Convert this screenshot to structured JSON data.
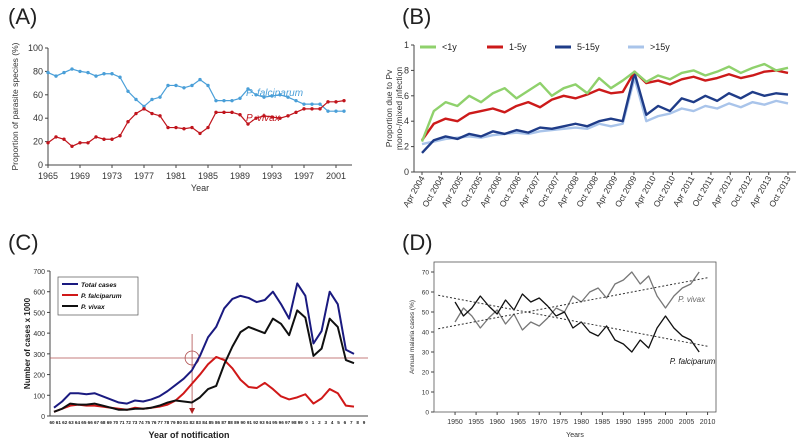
{
  "panel_labels": [
    "(A)",
    "(B)",
    "(C)",
    "(D)"
  ],
  "chart_data": [
    {
      "panel": "(A)",
      "type": "line",
      "xlabel": "Year",
      "ylabel": "Proportion of parasite species (%)",
      "xlim": [
        1965,
        2003
      ],
      "ylim": [
        0,
        100
      ],
      "xticks": [
        1965,
        1969,
        1973,
        1977,
        1981,
        1985,
        1989,
        1993,
        1997,
        2001
      ],
      "yticks": [
        0,
        20,
        40,
        60,
        80,
        100
      ],
      "x": [
        1965,
        1966,
        1967,
        1968,
        1969,
        1970,
        1971,
        1972,
        1973,
        1974,
        1975,
        1976,
        1977,
        1978,
        1979,
        1980,
        1981,
        1982,
        1983,
        1984,
        1985,
        1986,
        1987,
        1988,
        1989,
        1990,
        1991,
        1992,
        1993,
        1994,
        1995,
        1996,
        1997,
        1998,
        1999,
        2000,
        2001,
        2002
      ],
      "series": [
        {
          "name": "P. falciparum",
          "color": "#4a9fd8",
          "values": [
            79,
            76,
            79,
            82,
            80,
            79,
            76,
            78,
            78,
            75,
            63,
            56,
            50,
            56,
            58,
            68,
            68,
            66,
            68,
            73,
            68,
            55,
            55,
            55,
            57,
            65,
            60,
            58,
            59,
            60,
            58,
            55,
            52,
            52,
            52,
            46,
            46,
            46
          ]
        },
        {
          "name": "P. vivax",
          "color": "#c0141c",
          "values": [
            19,
            24,
            22,
            16,
            19,
            19,
            24,
            22,
            22,
            25,
            37,
            44,
            48,
            44,
            42,
            32,
            32,
            31,
            32,
            27,
            32,
            45,
            45,
            45,
            43,
            35,
            40,
            42,
            41,
            40,
            42,
            45,
            48,
            48,
            48,
            54,
            54,
            55
          ]
        }
      ]
    },
    {
      "panel": "(B)",
      "type": "line",
      "ylabel": "Proportion due to Pv mono-/mixed infection",
      "ylim": [
        0,
        1
      ],
      "yticks": [
        "0",
        ".2",
        ".4",
        ".6",
        ".8",
        "1"
      ],
      "xtick_labels": [
        "Apr 2004",
        "Oct 2004",
        "Apr 2005",
        "Oct 2005",
        "Apr 2006",
        "Oct 2006",
        "Apr 2007",
        "Oct 2007",
        "Apr 2008",
        "Oct 2008",
        "Apr 2009",
        "Oct 2009",
        "Apr 2010",
        "Oct 2010",
        "Apr 2011",
        "Oct 2011",
        "Apr 2012",
        "Oct 2012",
        "Apr 2013",
        "Oct 2013"
      ],
      "legend": [
        "<1y",
        "1-5y",
        "5-15y",
        ">15y"
      ],
      "series": [
        {
          "name": "<1y",
          "color": "#8fd16c",
          "values": [
            0.24,
            0.48,
            0.55,
            0.52,
            0.6,
            0.55,
            0.62,
            0.66,
            0.58,
            0.64,
            0.7,
            0.6,
            0.66,
            0.69,
            0.62,
            0.74,
            0.66,
            0.72,
            0.79,
            0.71,
            0.76,
            0.73,
            0.78,
            0.8,
            0.76,
            0.79,
            0.83,
            0.78,
            0.82,
            0.85,
            0.8,
            0.82
          ]
        },
        {
          "name": "1-5y",
          "color": "#cc1a1a",
          "values": [
            0.25,
            0.38,
            0.42,
            0.4,
            0.46,
            0.48,
            0.5,
            0.47,
            0.52,
            0.55,
            0.51,
            0.57,
            0.6,
            0.58,
            0.61,
            0.65,
            0.62,
            0.63,
            0.79,
            0.7,
            0.72,
            0.69,
            0.73,
            0.75,
            0.72,
            0.74,
            0.77,
            0.74,
            0.76,
            0.79,
            0.8,
            0.78
          ]
        },
        {
          "name": "5-15y",
          "color": "#1f3c88",
          "values": [
            0.15,
            0.25,
            0.28,
            0.26,
            0.3,
            0.28,
            0.32,
            0.3,
            0.33,
            0.31,
            0.35,
            0.34,
            0.36,
            0.38,
            0.36,
            0.4,
            0.42,
            0.4,
            0.78,
            0.45,
            0.52,
            0.48,
            0.58,
            0.55,
            0.6,
            0.56,
            0.62,
            0.58,
            0.63,
            0.6,
            0.62,
            0.61
          ]
        },
        {
          "name": ">15y",
          "color": "#a9c4ea",
          "values": [
            0.22,
            0.24,
            0.26,
            0.27,
            0.28,
            0.27,
            0.29,
            0.3,
            0.31,
            0.3,
            0.32,
            0.33,
            0.34,
            0.35,
            0.34,
            0.38,
            0.36,
            0.38,
            0.74,
            0.4,
            0.44,
            0.46,
            0.5,
            0.48,
            0.52,
            0.5,
            0.54,
            0.51,
            0.55,
            0.53,
            0.56,
            0.54
          ]
        }
      ]
    },
    {
      "panel": "(C)",
      "type": "line",
      "xlabel": "Year of notification",
      "ylabel": "Number of cases x 1000",
      "ylim": [
        0,
        700
      ],
      "yticks": [
        0,
        100,
        200,
        300,
        400,
        500,
        600,
        700
      ],
      "xtick_labels": [
        "60",
        "61",
        "62",
        "63",
        "64",
        "65",
        "66",
        "67",
        "68",
        "69",
        "70",
        "71",
        "72",
        "73",
        "74",
        "75",
        "76",
        "77",
        "78",
        "79",
        "80",
        "81",
        "82",
        "83",
        "84",
        "85",
        "86",
        "87",
        "88",
        "89",
        "90",
        "91",
        "92",
        "93",
        "94",
        "95",
        "96",
        "97",
        "98",
        "99",
        "0",
        "1",
        "2",
        "3",
        "4",
        "5",
        "6",
        "7",
        "8",
        "9"
      ],
      "reference_level": 280,
      "reference_year_label": "82",
      "series": [
        {
          "name": "Total cases",
          "color": "#1a1a80",
          "values": [
            40,
            70,
            110,
            110,
            105,
            110,
            95,
            80,
            65,
            60,
            75,
            70,
            80,
            95,
            120,
            150,
            180,
            220,
            290,
            380,
            430,
            520,
            565,
            580,
            570,
            550,
            560,
            600,
            540,
            470,
            640,
            580,
            350,
            410,
            600,
            540,
            320,
            300
          ]
        },
        {
          "name": "P. falciparum",
          "color": "#d01818",
          "values": [
            20,
            35,
            50,
            55,
            50,
            50,
            45,
            40,
            35,
            30,
            40,
            35,
            40,
            45,
            55,
            75,
            110,
            155,
            200,
            250,
            285,
            270,
            230,
            175,
            140,
            135,
            160,
            130,
            95,
            80,
            90,
            105,
            60,
            85,
            130,
            110,
            50,
            45
          ]
        },
        {
          "name": "P. vivax",
          "color": "#101010",
          "values": [
            20,
            35,
            60,
            55,
            55,
            60,
            50,
            40,
            30,
            30,
            35,
            35,
            40,
            50,
            65,
            75,
            70,
            65,
            90,
            130,
            145,
            250,
            335,
            405,
            430,
            415,
            400,
            470,
            445,
            390,
            510,
            475,
            290,
            325,
            470,
            430,
            270,
            255
          ]
        }
      ]
    },
    {
      "panel": "(D)",
      "type": "line",
      "xlabel": "Years",
      "ylabel": "Annual malaria cases (%)",
      "xlim": [
        1945,
        2012
      ],
      "ylim": [
        0,
        75
      ],
      "xticks": [
        1950,
        1955,
        1960,
        1965,
        1970,
        1975,
        1980,
        1985,
        1990,
        1995,
        2000,
        2005,
        2010
      ],
      "yticks": [
        0,
        10,
        20,
        30,
        40,
        50,
        60,
        70
      ],
      "x": [
        1950,
        1952,
        1954,
        1956,
        1958,
        1960,
        1962,
        1964,
        1966,
        1968,
        1970,
        1972,
        1974,
        1976,
        1978,
        1980,
        1982,
        1984,
        1986,
        1988,
        1990,
        1992,
        1994,
        1996,
        1998,
        2000,
        2002,
        2004,
        2006,
        2008
      ],
      "series": [
        {
          "name": "P. vivax",
          "color": "#777777",
          "values": [
            45,
            52,
            48,
            42,
            47,
            51,
            44,
            49,
            41,
            45,
            43,
            47,
            52,
            50,
            58,
            55,
            60,
            62,
            57,
            64,
            66,
            70,
            64,
            68,
            58,
            52,
            58,
            62,
            64,
            70
          ]
        },
        {
          "name": "P. falciparum",
          "color": "#111111",
          "values": [
            55,
            48,
            52,
            58,
            53,
            49,
            56,
            51,
            59,
            55,
            57,
            53,
            48,
            50,
            42,
            45,
            40,
            38,
            43,
            36,
            34,
            30,
            36,
            32,
            42,
            48,
            42,
            38,
            36,
            30
          ]
        }
      ],
      "trend_lines": [
        "dotted linear trend for P. vivax",
        "dotted linear trend for P. falciparum"
      ]
    }
  ]
}
